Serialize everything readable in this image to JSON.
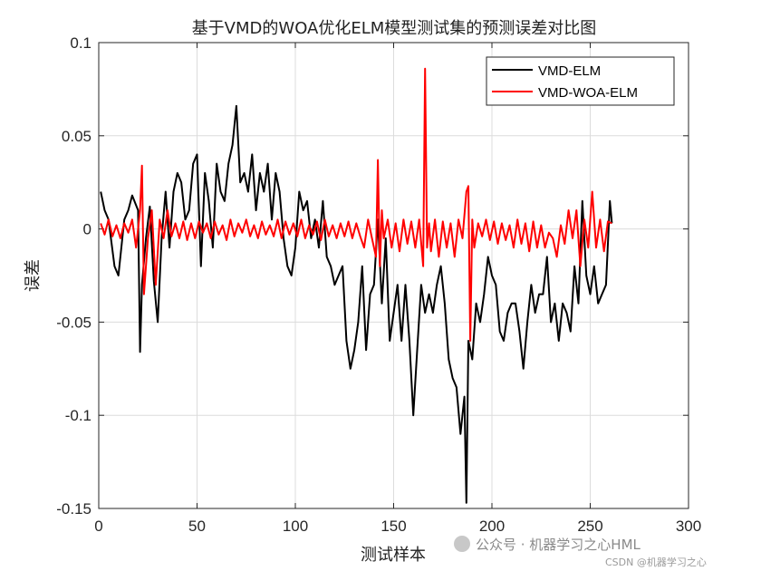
{
  "chart_data": {
    "type": "line",
    "title": "基于VMD的WOA优化ELM模型测试集的预测误差对比图",
    "xlabel": "测试样本",
    "ylabel": "误差",
    "xlim": [
      0,
      300
    ],
    "ylim": [
      -0.15,
      0.1
    ],
    "xticks": [
      "0",
      "50",
      "100",
      "150",
      "200",
      "250",
      "300"
    ],
    "yticks": [
      "-0.15",
      "-0.1",
      "-0.05",
      "0",
      "0.05",
      "0.1"
    ],
    "grid": true,
    "legend_position": "top-right",
    "series": [
      {
        "name": "VMD-ELM",
        "color": "#000000",
        "x": [
          1,
          3,
          5,
          8,
          10,
          13,
          15,
          17,
          20,
          21,
          22,
          24,
          26,
          28,
          30,
          32,
          34,
          36,
          38,
          40,
          42,
          44,
          46,
          48,
          50,
          52,
          54,
          56,
          58,
          60,
          62,
          64,
          66,
          68,
          70,
          72,
          74,
          76,
          78,
          80,
          82,
          84,
          86,
          88,
          90,
          92,
          94,
          96,
          98,
          100,
          102,
          104,
          106,
          108,
          110,
          112,
          114,
          116,
          118,
          120,
          122,
          124,
          126,
          128,
          130,
          132,
          134,
          136,
          138,
          140,
          142,
          144,
          146,
          148,
          150,
          152,
          154,
          156,
          158,
          160,
          162,
          164,
          166,
          168,
          170,
          172,
          174,
          176,
          178,
          180,
          182,
          184,
          186,
          187,
          188,
          190,
          192,
          194,
          196,
          198,
          200,
          202,
          204,
          206,
          208,
          210,
          212,
          214,
          216,
          218,
          220,
          222,
          224,
          226,
          228,
          230,
          232,
          234,
          236,
          238,
          240,
          242,
          244,
          246,
          248,
          250,
          252,
          254,
          256,
          258,
          260,
          261
        ],
        "values": [
          0.02,
          0.01,
          0.005,
          -0.02,
          -0.025,
          0.005,
          0.01,
          0.018,
          0.01,
          -0.066,
          -0.03,
          -0.005,
          0.012,
          -0.028,
          -0.05,
          -0.005,
          0.02,
          -0.01,
          0.02,
          0.03,
          0.025,
          0.005,
          0.01,
          0.035,
          0.04,
          -0.02,
          0.03,
          0.015,
          -0.01,
          0.035,
          0.02,
          0.015,
          0.035,
          0.045,
          0.066,
          0.025,
          0.03,
          0.02,
          0.04,
          0.01,
          0.03,
          0.02,
          0.035,
          0.005,
          0.03,
          0.02,
          -0.005,
          -0.02,
          -0.025,
          -0.01,
          0.02,
          0.01,
          0.015,
          -0.005,
          0.005,
          -0.01,
          0.015,
          -0.015,
          -0.02,
          -0.03,
          -0.025,
          -0.02,
          -0.06,
          -0.075,
          -0.065,
          -0.05,
          -0.02,
          -0.065,
          -0.035,
          -0.03,
          0.005,
          -0.04,
          -0.005,
          -0.06,
          -0.045,
          -0.03,
          -0.06,
          -0.03,
          -0.06,
          -0.1,
          -0.065,
          -0.03,
          -0.045,
          -0.035,
          -0.045,
          -0.03,
          -0.02,
          -0.04,
          -0.07,
          -0.08,
          -0.085,
          -0.11,
          -0.09,
          -0.147,
          -0.06,
          -0.07,
          -0.04,
          -0.05,
          -0.035,
          -0.015,
          -0.025,
          -0.03,
          -0.055,
          -0.06,
          -0.045,
          -0.04,
          -0.04,
          -0.055,
          -0.075,
          -0.05,
          -0.03,
          -0.045,
          -0.035,
          -0.035,
          -0.015,
          -0.05,
          -0.04,
          -0.06,
          -0.04,
          -0.045,
          -0.055,
          -0.02,
          -0.04,
          0.015,
          -0.025,
          -0.035,
          -0.02,
          -0.04,
          -0.035,
          -0.03,
          0.015,
          0.003
        ],
        "x_red_note": ""
      },
      {
        "name": "VMD-WOA-ELM",
        "color": "#ff0000",
        "x": [
          1,
          3,
          5,
          7,
          9,
          11,
          13,
          15,
          17,
          19,
          21,
          22,
          23,
          25,
          27,
          29,
          31,
          33,
          35,
          37,
          39,
          41,
          43,
          45,
          47,
          49,
          51,
          53,
          55,
          57,
          59,
          61,
          63,
          65,
          67,
          69,
          71,
          73,
          75,
          77,
          79,
          81,
          83,
          85,
          87,
          89,
          91,
          93,
          95,
          97,
          99,
          101,
          103,
          105,
          107,
          109,
          111,
          113,
          115,
          117,
          119,
          121,
          123,
          125,
          127,
          129,
          131,
          133,
          135,
          137,
          139,
          141,
          142,
          143,
          144,
          145,
          147,
          149,
          151,
          153,
          155,
          157,
          159,
          161,
          163,
          165,
          166,
          167,
          168,
          169,
          171,
          173,
          175,
          177,
          179,
          181,
          183,
          185,
          187,
          188,
          189,
          190,
          191,
          193,
          195,
          197,
          199,
          201,
          203,
          205,
          207,
          209,
          211,
          213,
          215,
          217,
          219,
          221,
          223,
          225,
          227,
          229,
          231,
          233,
          235,
          237,
          239,
          241,
          243,
          245,
          247,
          249,
          251,
          253,
          255,
          257,
          259,
          261
        ],
        "values": [
          0.003,
          -0.003,
          0.005,
          -0.004,
          0.002,
          -0.005,
          0.003,
          -0.002,
          0.005,
          -0.01,
          0.01,
          0.034,
          -0.035,
          -0.005,
          0.01,
          -0.03,
          0.005,
          -0.005,
          0.01,
          -0.004,
          0.003,
          -0.005,
          0.004,
          -0.006,
          0.003,
          -0.005,
          0.004,
          -0.002,
          0.003,
          -0.005,
          0.004,
          -0.003,
          0.002,
          -0.006,
          0.005,
          -0.004,
          0.003,
          -0.002,
          0.005,
          -0.004,
          0.002,
          -0.005,
          0.004,
          -0.003,
          0.002,
          -0.004,
          0.005,
          -0.005,
          0.004,
          -0.003,
          0.003,
          -0.004,
          0.005,
          -0.005,
          0.002,
          -0.003,
          0.004,
          -0.006,
          0.005,
          -0.004,
          0.002,
          -0.005,
          0.003,
          -0.004,
          0.004,
          -0.005,
          0.003,
          -0.004,
          -0.01,
          0.005,
          -0.005,
          -0.015,
          0.037,
          -0.02,
          0.01,
          -0.005,
          0.005,
          -0.01,
          0.003,
          -0.012,
          0.005,
          -0.008,
          0.004,
          -0.01,
          0.005,
          -0.02,
          0.086,
          -0.01,
          0.003,
          -0.012,
          0.005,
          -0.015,
          0.004,
          -0.01,
          0.003,
          -0.015,
          0.005,
          -0.005,
          0.02,
          0.023,
          -0.06,
          0.005,
          -0.01,
          0.003,
          -0.004,
          0.005,
          -0.006,
          0.004,
          -0.008,
          0.003,
          -0.006,
          0.002,
          -0.01,
          0.005,
          -0.008,
          0.003,
          -0.012,
          0.004,
          -0.01,
          0.002,
          -0.01,
          -0.002,
          -0.005,
          -0.015,
          0.002,
          -0.008,
          0.01,
          -0.005,
          0.01,
          -0.02,
          0.005,
          -0.01,
          0.02,
          -0.01,
          0.005,
          -0.012,
          0.004,
          0.003
        ]
      }
    ]
  },
  "watermark": {
    "main": "公众号 · 机器学习之心HML",
    "sub": "CSDN @机器学习之心"
  }
}
